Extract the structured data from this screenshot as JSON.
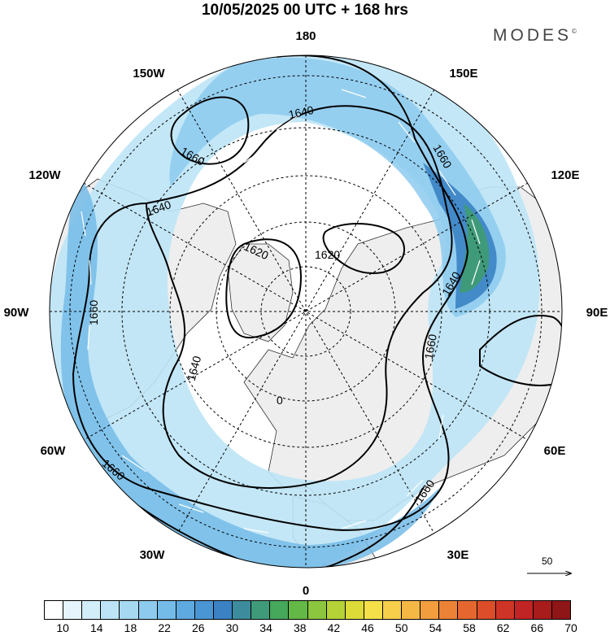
{
  "title": "10/05/2025  00 UTC  + 168 hrs",
  "brand": "MODES",
  "brand_mark": "©",
  "map": {
    "projection": "north-polar-stereographic",
    "longitude_labels": [
      {
        "text": "180",
        "lon": 180
      },
      {
        "text": "150E",
        "lon": 150
      },
      {
        "text": "120E",
        "lon": 120
      },
      {
        "text": "90E",
        "lon": 90
      },
      {
        "text": "60E",
        "lon": 60
      },
      {
        "text": "30E",
        "lon": 30
      },
      {
        "text": "0",
        "lon": 0
      },
      {
        "text": "30W",
        "lon": -30
      },
      {
        "text": "60W",
        "lon": -60
      },
      {
        "text": "90W",
        "lon": -90
      },
      {
        "text": "120W",
        "lon": -120
      },
      {
        "text": "150W",
        "lon": -150
      }
    ],
    "contour_labels": [
      "1640",
      "1660",
      "1640",
      "1620",
      "1620",
      "1660",
      "1640",
      "1660",
      "1640",
      "1660",
      "1660",
      "1660",
      "0"
    ],
    "colors": {
      "land": "#eeeeee",
      "ocean": "#ffffff",
      "contour": "#000000",
      "vectors": "#ffffff"
    }
  },
  "wind_reference": {
    "value": "50"
  },
  "colorbar": {
    "colors": [
      "#ffffff",
      "#e6f4fb",
      "#d2eef9",
      "#bde4f6",
      "#a6d8f2",
      "#8dcaee",
      "#74bbe8",
      "#5ea9df",
      "#4a95d3",
      "#3a82c4",
      "#3d8c9e",
      "#3f9a7a",
      "#46a85a",
      "#63b846",
      "#8cc63e",
      "#b5d236",
      "#dddb38",
      "#f5e04a",
      "#f8cf4a",
      "#f6b844",
      "#f29e3e",
      "#ec8236",
      "#e5672f",
      "#dc4d2a",
      "#cf3527",
      "#c02424",
      "#a81c1c",
      "#8e1616"
    ],
    "tick_labels": [
      "10",
      "14",
      "18",
      "22",
      "26",
      "30",
      "34",
      "38",
      "42",
      "46",
      "50",
      "54",
      "58",
      "62",
      "66",
      "70"
    ]
  }
}
